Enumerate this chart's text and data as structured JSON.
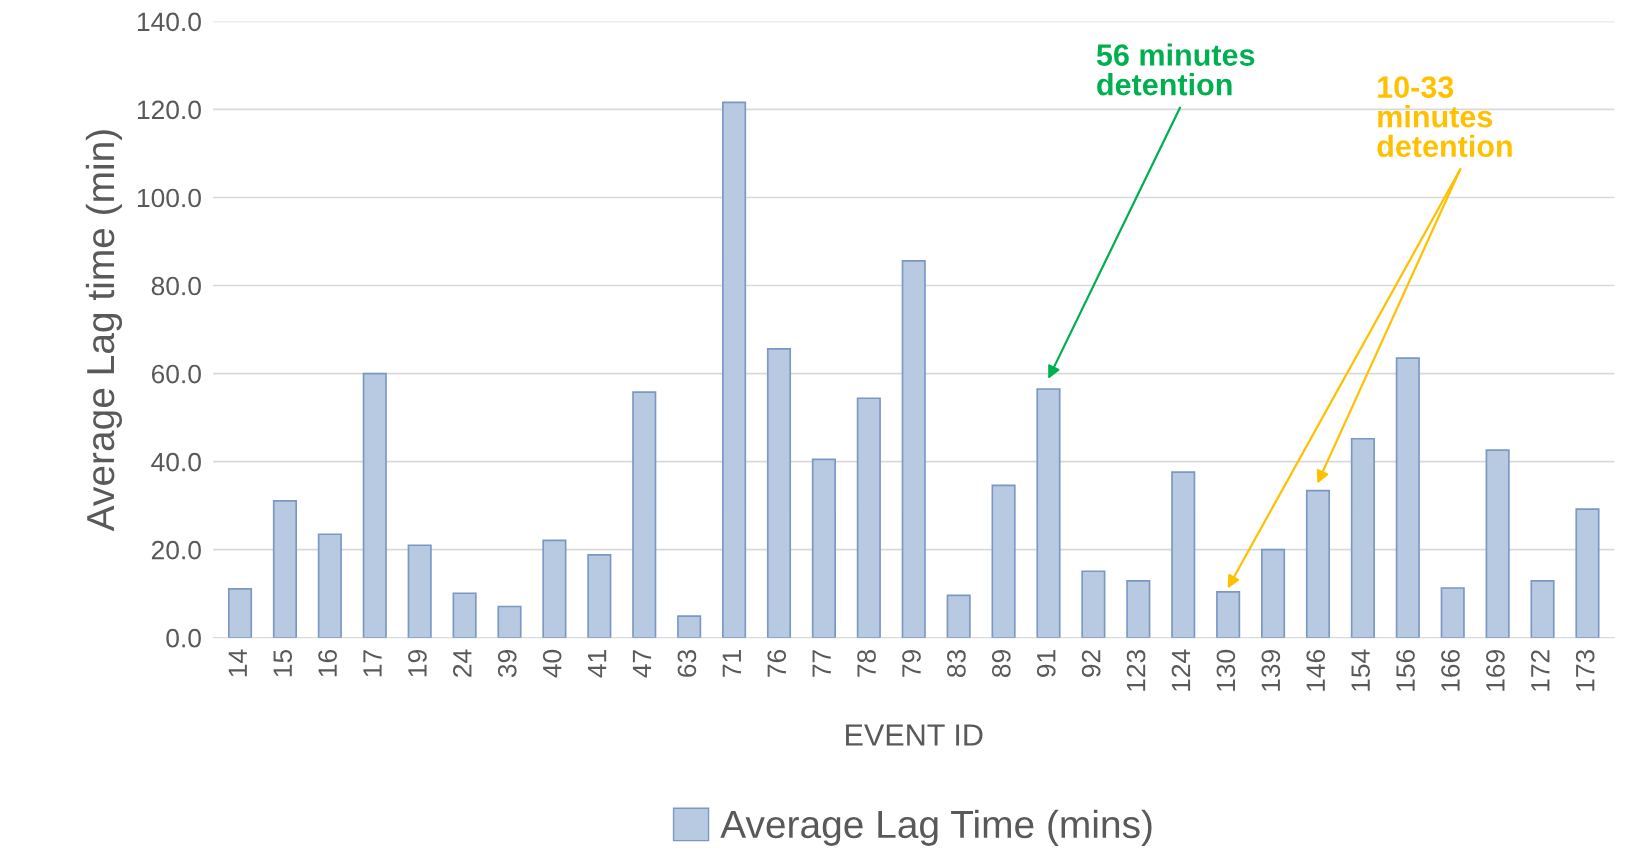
{
  "chart_data": {
    "type": "bar",
    "xlabel": "EVENT ID",
    "ylabel": "Average Lag time (min)",
    "categories": [
      "14",
      "15",
      "16",
      "17",
      "19",
      "24",
      "39",
      "40",
      "41",
      "47",
      "63",
      "71",
      "76",
      "77",
      "78",
      "79",
      "83",
      "89",
      "91",
      "92",
      "123",
      "124",
      "130",
      "139",
      "146",
      "154",
      "156",
      "166",
      "169",
      "172",
      "173"
    ],
    "series": [
      {
        "name": "Average Lag Time (mins)",
        "color": "#b8cae2",
        "values": [
          11.1,
          31.1,
          23.5,
          60.0,
          21.0,
          10.1,
          7.1,
          22.1,
          18.8,
          55.8,
          4.9,
          121.6,
          65.6,
          40.5,
          54.4,
          85.6,
          9.6,
          34.6,
          56.5,
          15.1,
          12.9,
          37.6,
          10.4,
          20.0,
          33.4,
          45.2,
          63.5,
          11.3,
          42.6,
          12.9,
          29.2
        ]
      }
    ],
    "ylim": [
      0,
      140
    ],
    "yticks": [
      {
        "value": 0,
        "label": "0.0"
      },
      {
        "value": 20,
        "label": "20.0"
      },
      {
        "value": 40,
        "label": "40.0"
      },
      {
        "value": 60,
        "label": "60.0"
      },
      {
        "value": 80,
        "label": "80.0"
      },
      {
        "value": 100,
        "label": "100.0"
      },
      {
        "value": 120,
        "label": "120.0"
      },
      {
        "value": 140,
        "label": "140.0"
      }
    ],
    "grid": "y",
    "legend": "bottom",
    "annotations": [
      "56 minutes\ndetention",
      "10-33\nminutes\ndetention"
    ]
  }
}
